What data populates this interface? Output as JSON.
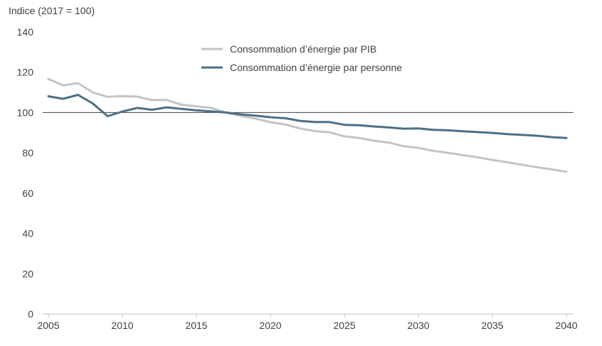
{
  "chart_data": {
    "type": "line",
    "ylabel": "Indice (2017 = 100)",
    "ylim": [
      0,
      140
    ],
    "yticks": [
      0,
      20,
      40,
      60,
      80,
      100,
      120,
      140
    ],
    "xlim": [
      2005,
      2040
    ],
    "xticks": [
      2005,
      2010,
      2015,
      2020,
      2025,
      2030,
      2035,
      2040
    ],
    "reference_line": 100,
    "grid": false,
    "legend_position": "top-center",
    "x": [
      2005,
      2006,
      2007,
      2008,
      2009,
      2010,
      2011,
      2012,
      2013,
      2014,
      2015,
      2016,
      2017,
      2018,
      2019,
      2020,
      2021,
      2022,
      2023,
      2024,
      2025,
      2026,
      2027,
      2028,
      2029,
      2030,
      2031,
      2032,
      2033,
      2034,
      2035,
      2036,
      2037,
      2038,
      2039,
      2040
    ],
    "series": [
      {
        "name": "Consommation d’énergie par PIB",
        "color": "#c4c4c4",
        "values": [
          116.7,
          113.5,
          114.6,
          110,
          107.8,
          108.2,
          107.9,
          106.2,
          106.2,
          103.9,
          103.1,
          102.3,
          100,
          98.3,
          97,
          95.2,
          94.1,
          92.1,
          90.8,
          90.2,
          88.2,
          87.4,
          86,
          85.1,
          83.3,
          82.5,
          81,
          80,
          78.9,
          77.8,
          76.5,
          75.3,
          74.1,
          72.9,
          71.8,
          70.6
        ]
      },
      {
        "name": "Consommation d’énergie par personne",
        "color": "#4a7089",
        "values": [
          108.1,
          106.8,
          108.8,
          104.5,
          98.2,
          100.5,
          102.3,
          101.4,
          102.6,
          101.8,
          101.1,
          100.6,
          100,
          99.1,
          98.5,
          97.7,
          97.2,
          95.9,
          95.3,
          95.3,
          93.9,
          93.7,
          93.1,
          92.6,
          92,
          92.1,
          91.4,
          91.2,
          90.7,
          90.3,
          89.9,
          89.3,
          88.9,
          88.5,
          87.8,
          87.4
        ]
      }
    ]
  }
}
